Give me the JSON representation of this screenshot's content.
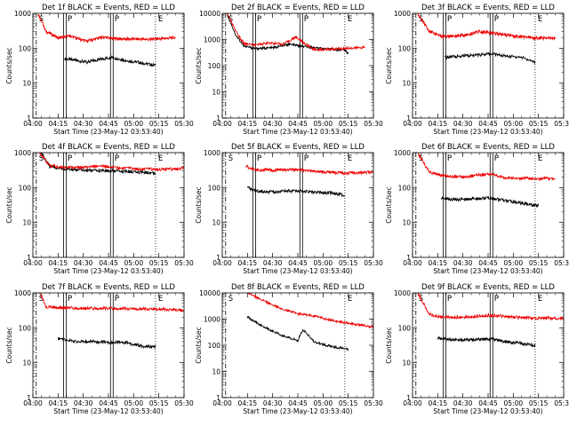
{
  "chart_data": [
    {
      "type": "line",
      "title": "Det 1f BLACK = Events, RED = LLD",
      "xlabel": "Start Time (23-May-12 03:53:40)",
      "ylabel": "Counts/sec",
      "x_ticks": [
        "04:00",
        "04:15",
        "04:30",
        "04:45",
        "05:00",
        "05:15",
        "05:30"
      ],
      "y_ticks": [
        "1",
        "10",
        "100",
        "1000"
      ],
      "ylim": [
        1,
        1000
      ],
      "ylog": true,
      "markers": [
        {
          "label": "S",
          "x": "04:02",
          "style": "dashdot"
        },
        {
          "label": "P",
          "x": "04:19",
          "style": "double"
        },
        {
          "label": "P",
          "x": "04:47",
          "style": "double"
        },
        {
          "label": "E",
          "x": "05:13",
          "style": "dotted"
        }
      ],
      "series": [
        {
          "color": "#000000",
          "x": [
            "04:19",
            "04:25",
            "04:32",
            "04:40",
            "04:47",
            "04:55",
            "05:05",
            "05:13"
          ],
          "values": [
            50,
            45,
            40,
            48,
            55,
            45,
            38,
            32
          ]
        },
        {
          "color": "#ee0000",
          "x": [
            "04:03",
            "04:08",
            "04:15",
            "04:22",
            "04:32",
            "04:42",
            "04:47",
            "04:55",
            "05:10",
            "05:25"
          ],
          "values": [
            1000,
            300,
            200,
            220,
            160,
            210,
            190,
            185,
            180,
            200
          ]
        }
      ]
    },
    {
      "type": "line",
      "title": "Det 2f BLACK = Events, RED = LLD",
      "xlabel": "Start Time (23-May-12 03:53:40)",
      "ylabel": "Counts/sec",
      "x_ticks": [
        "04:00",
        "04:15",
        "04:30",
        "04:45",
        "05:00",
        "05:15",
        "05:30"
      ],
      "y_ticks": [
        "1",
        "10",
        "100",
        "1000",
        "10000"
      ],
      "ylim": [
        1,
        10000
      ],
      "ylog": true,
      "markers": [
        {
          "label": "S",
          "x": "04:02",
          "style": "dashdot"
        },
        {
          "label": "P",
          "x": "04:19",
          "style": "double"
        },
        {
          "label": "P",
          "x": "04:47",
          "style": "double"
        },
        {
          "label": "E",
          "x": "05:13",
          "style": "dotted"
        }
      ],
      "series": [
        {
          "color": "#000000",
          "x": [
            "04:03",
            "04:08",
            "04:13",
            "04:20",
            "04:30",
            "04:40",
            "04:50",
            "05:00",
            "05:13",
            "05:15"
          ],
          "values": [
            9000,
            1500,
            550,
            450,
            480,
            650,
            520,
            440,
            400,
            280
          ]
        },
        {
          "color": "#ee0000",
          "x": [
            "04:03",
            "04:08",
            "04:13",
            "04:20",
            "04:28",
            "04:36",
            "04:44",
            "04:48",
            "04:55",
            "05:05",
            "05:25"
          ],
          "values": [
            10000,
            2000,
            700,
            620,
            750,
            650,
            1250,
            780,
            400,
            430,
            500
          ]
        }
      ]
    },
    {
      "type": "line",
      "title": "Det 3f BLACK = Events, RED = LLD",
      "xlabel": "Start Time (23-May-12 03:53:40)",
      "ylabel": "Counts/sec",
      "x_ticks": [
        "04:00",
        "04:15",
        "04:30",
        "04:45",
        "05:00",
        "05:15",
        "05:30"
      ],
      "y_ticks": [
        "1",
        "10",
        "100",
        "1000"
      ],
      "ylim": [
        1,
        1000
      ],
      "ylog": true,
      "markers": [
        {
          "label": "S",
          "x": "04:02",
          "style": "dashdot"
        },
        {
          "label": "P",
          "x": "04:19",
          "style": "double"
        },
        {
          "label": "P",
          "x": "04:47",
          "style": "double"
        },
        {
          "label": "E",
          "x": "05:13",
          "style": "dotted"
        }
      ],
      "series": [
        {
          "color": "#000000",
          "x": [
            "04:19",
            "04:30",
            "04:40",
            "04:47",
            "04:55",
            "05:05",
            "05:13"
          ],
          "values": [
            55,
            60,
            65,
            70,
            60,
            55,
            40
          ]
        },
        {
          "color": "#ee0000",
          "x": [
            "04:03",
            "04:10",
            "04:18",
            "04:30",
            "04:40",
            "04:47",
            "04:55",
            "05:10",
            "05:25"
          ],
          "values": [
            1000,
            300,
            220,
            230,
            300,
            270,
            240,
            200,
            190
          ]
        }
      ]
    },
    {
      "type": "line",
      "title": "Det 4f BLACK = Events, RED = LLD",
      "xlabel": "Start Time (23-May-12 03:53:40)",
      "ylabel": "Counts/sec",
      "x_ticks": [
        "04:00",
        "04:15",
        "04:30",
        "04:45",
        "05:00",
        "05:15",
        "05:30"
      ],
      "y_ticks": [
        "1",
        "10",
        "100",
        "1000"
      ],
      "ylim": [
        1,
        1000
      ],
      "ylog": true,
      "markers": [
        {
          "label": "S",
          "x": "04:02",
          "style": "dashdot"
        },
        {
          "label": "P",
          "x": "04:19",
          "style": "double"
        },
        {
          "label": "P",
          "x": "04:47",
          "style": "double"
        },
        {
          "label": "E",
          "x": "05:13",
          "style": "dotted"
        }
      ],
      "series": [
        {
          "color": "#000000",
          "x": [
            "04:05",
            "04:10",
            "04:18",
            "04:30",
            "04:47",
            "05:00",
            "05:13"
          ],
          "values": [
            1000,
            400,
            340,
            310,
            300,
            280,
            260
          ]
        },
        {
          "color": "#ee0000",
          "x": [
            "04:04",
            "04:10",
            "04:18",
            "04:30",
            "04:40",
            "04:50",
            "05:05",
            "05:20",
            "05:30"
          ],
          "values": [
            1000,
            420,
            380,
            380,
            420,
            370,
            340,
            330,
            360
          ]
        }
      ]
    },
    {
      "type": "line",
      "title": "Det 5f BLACK = Events, RED = LLD",
      "xlabel": "Start Time (23-May-12 03:53:40)",
      "ylabel": "Counts/sec",
      "x_ticks": [
        "04:00",
        "04:15",
        "04:30",
        "04:45",
        "05:00",
        "05:15",
        "05:30"
      ],
      "y_ticks": [
        "1",
        "10",
        "100",
        "1000"
      ],
      "ylim": [
        1,
        1000
      ],
      "ylog": true,
      "markers": [
        {
          "label": "S",
          "x": "04:02",
          "style": "dashdot"
        },
        {
          "label": "P",
          "x": "04:19",
          "style": "double"
        },
        {
          "label": "P",
          "x": "04:47",
          "style": "double"
        },
        {
          "label": "E",
          "x": "05:13",
          "style": "dotted"
        }
      ],
      "series": [
        {
          "color": "#000000",
          "x": [
            "04:15",
            "04:20",
            "04:30",
            "04:40",
            "04:47",
            "04:55",
            "05:05",
            "05:13"
          ],
          "values": [
            100,
            80,
            75,
            80,
            78,
            72,
            70,
            60
          ]
        },
        {
          "color": "#ee0000",
          "x": [
            "04:14",
            "04:20",
            "04:30",
            "04:40",
            "04:47",
            "04:55",
            "05:05",
            "05:15",
            "05:30"
          ],
          "values": [
            400,
            330,
            310,
            320,
            320,
            280,
            270,
            260,
            280
          ]
        }
      ]
    },
    {
      "type": "line",
      "title": "Det 6f BLACK = Events, RED = LLD",
      "xlabel": "Start Time (23-May-12 03:53:40)",
      "ylabel": "Counts/sec",
      "x_ticks": [
        "04:00",
        "04:15",
        "04:30",
        "04:45",
        "05:00",
        "05:15",
        "05:30"
      ],
      "y_ticks": [
        "1",
        "10",
        "100",
        "1000"
      ],
      "ylim": [
        1,
        1000
      ],
      "ylog": true,
      "markers": [
        {
          "label": "S",
          "x": "04:02",
          "style": "dashdot"
        },
        {
          "label": "P",
          "x": "04:19",
          "style": "double"
        },
        {
          "label": "P",
          "x": "04:47",
          "style": "double"
        },
        {
          "label": "E",
          "x": "05:13",
          "style": "dotted"
        }
      ],
      "series": [
        {
          "color": "#000000",
          "x": [
            "04:17",
            "04:25",
            "04:35",
            "04:47",
            "04:55",
            "05:05",
            "05:15"
          ],
          "values": [
            50,
            45,
            48,
            50,
            42,
            36,
            30
          ]
        },
        {
          "color": "#ee0000",
          "x": [
            "04:03",
            "04:10",
            "04:17",
            "04:30",
            "04:40",
            "04:47",
            "04:55",
            "05:10",
            "05:25"
          ],
          "values": [
            1000,
            280,
            220,
            200,
            230,
            240,
            190,
            180,
            180
          ]
        }
      ]
    },
    {
      "type": "line",
      "title": "Det 7f BLACK = Events, RED = LLD",
      "xlabel": "Start Time (23-May-12 03:53:40)",
      "ylabel": "Counts/sec",
      "x_ticks": [
        "04:00",
        "04:15",
        "04:30",
        "04:45",
        "05:00",
        "05:15",
        "05:30"
      ],
      "y_ticks": [
        "1",
        "10",
        "100",
        "1000"
      ],
      "ylim": [
        1,
        1000
      ],
      "ylog": true,
      "markers": [
        {
          "label": "S",
          "x": "04:02",
          "style": "dashdot"
        },
        {
          "label": "P",
          "x": "04:19",
          "style": "double"
        },
        {
          "label": "P",
          "x": "04:47",
          "style": "double"
        },
        {
          "label": "E",
          "x": "05:13",
          "style": "dotted"
        }
      ],
      "series": [
        {
          "color": "#000000",
          "x": [
            "04:15",
            "04:25",
            "04:35",
            "04:47",
            "04:55",
            "05:05",
            "05:13"
          ],
          "values": [
            50,
            40,
            40,
            38,
            38,
            30,
            28
          ]
        },
        {
          "color": "#ee0000",
          "x": [
            "04:04",
            "04:08",
            "04:15",
            "04:30",
            "04:45",
            "05:00",
            "05:15",
            "05:30"
          ],
          "values": [
            1000,
            400,
            380,
            360,
            360,
            350,
            340,
            320
          ]
        }
      ]
    },
    {
      "type": "line",
      "title": "Det 8f BLACK = Events, RED = LLD",
      "xlabel": "Start Time (23-May-12 03:53:40)",
      "ylabel": "Counts/sec",
      "x_ticks": [
        "04:00",
        "04:15",
        "04:30",
        "04:45",
        "05:00",
        "05:15",
        "05:30"
      ],
      "y_ticks": [
        "1",
        "10",
        "100",
        "1000",
        "10000"
      ],
      "ylim": [
        1,
        10000
      ],
      "ylog": true,
      "markers": [
        {
          "label": "S",
          "x": "04:02",
          "style": "dashdot"
        },
        {
          "label": "E",
          "x": "05:13",
          "style": "dotted"
        }
      ],
      "series": [
        {
          "color": "#000000",
          "x": [
            "04:15",
            "04:25",
            "04:35",
            "04:45",
            "04:48",
            "04:55",
            "05:05",
            "05:15"
          ],
          "values": [
            1200,
            500,
            250,
            150,
            400,
            130,
            90,
            70
          ]
        },
        {
          "color": "#ee0000",
          "x": [
            "04:15",
            "04:25",
            "04:35",
            "04:45",
            "04:55",
            "05:05",
            "05:15",
            "05:30"
          ],
          "values": [
            10000,
            5000,
            2500,
            1600,
            1300,
            900,
            700,
            500
          ]
        }
      ]
    },
    {
      "type": "line",
      "title": "Det 9f BLACK = Events, RED = LLD",
      "xlabel": "Start Time (23-May-12 03:53:40)",
      "ylabel": "Counts/sec",
      "x_ticks": [
        "04:00",
        "04:15",
        "04:30",
        "04:45",
        "05:00",
        "05:15",
        "05:30"
      ],
      "y_ticks": [
        "1",
        "10",
        "100",
        "1000"
      ],
      "ylim": [
        1,
        1000
      ],
      "ylog": true,
      "markers": [
        {
          "label": "S",
          "x": "04:02",
          "style": "dashdot"
        },
        {
          "label": "P",
          "x": "04:19",
          "style": "double"
        },
        {
          "label": "P",
          "x": "04:47",
          "style": "double"
        },
        {
          "label": "E",
          "x": "05:13",
          "style": "dotted"
        }
      ],
      "series": [
        {
          "color": "#000000",
          "x": [
            "04:15",
            "04:25",
            "04:35",
            "04:47",
            "04:55",
            "05:05",
            "05:13"
          ],
          "values": [
            50,
            45,
            45,
            48,
            40,
            36,
            30
          ]
        },
        {
          "color": "#ee0000",
          "x": [
            "04:03",
            "04:10",
            "04:15",
            "04:30",
            "04:40",
            "04:47",
            "05:00",
            "05:15",
            "05:30"
          ],
          "values": [
            1000,
            250,
            210,
            200,
            220,
            230,
            200,
            190,
            190
          ]
        }
      ]
    }
  ]
}
